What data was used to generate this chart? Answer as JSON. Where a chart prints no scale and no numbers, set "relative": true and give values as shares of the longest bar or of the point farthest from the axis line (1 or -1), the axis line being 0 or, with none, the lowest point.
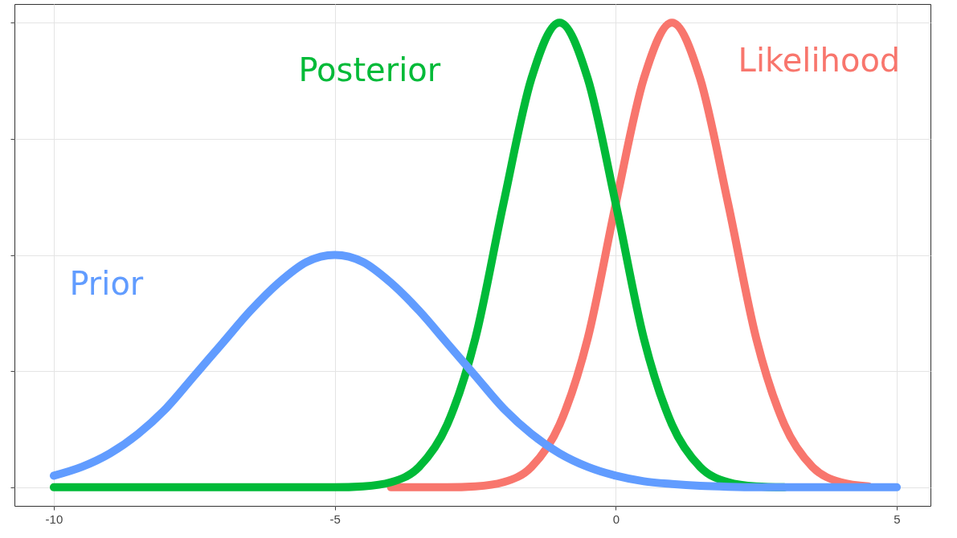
{
  "chart_data": {
    "type": "line",
    "relative": true,
    "x": [
      -10,
      -9.5,
      -9,
      -8.5,
      -8,
      -7.5,
      -7,
      -6.5,
      -6,
      -5.5,
      -5,
      -4.5,
      -4,
      -3.5,
      -3,
      -2.5,
      -2,
      -1.5,
      -1,
      -0.5,
      0,
      0.5,
      1,
      1.5,
      2,
      2.5,
      3,
      3.5,
      4,
      4.5,
      5
    ],
    "series": [
      {
        "name": "Prior",
        "color": "#619cff",
        "values": [
          0.025,
          0.044,
          0.073,
          0.115,
          0.17,
          0.24,
          0.31,
          0.38,
          0.44,
          0.485,
          0.5,
          0.485,
          0.44,
          0.38,
          0.31,
          0.24,
          0.17,
          0.115,
          0.073,
          0.044,
          0.025,
          0.013,
          0.007,
          0.003,
          0.001,
          0,
          0,
          0,
          0,
          0,
          0
        ]
      },
      {
        "name": "Posterior",
        "color": "#00ba38",
        "values": [
          0,
          0,
          0,
          0,
          0,
          0,
          0,
          0,
          0,
          0,
          0,
          0.002,
          0.011,
          0.044,
          0.135,
          0.32,
          0.61,
          0.88,
          1,
          0.88,
          0.61,
          0.32,
          0.135,
          0.044,
          0.011,
          0.002,
          0,
          null,
          null,
          null,
          null
        ]
      },
      {
        "name": "Likelihood",
        "color": "#f8766d",
        "values": [
          null,
          null,
          null,
          null,
          null,
          null,
          null,
          null,
          null,
          null,
          null,
          null,
          0,
          0,
          0,
          0.002,
          0.011,
          0.044,
          0.135,
          0.32,
          0.61,
          0.88,
          1,
          0.88,
          0.61,
          0.32,
          0.135,
          0.044,
          0.011,
          0.002,
          null
        ]
      }
    ],
    "xlim": [
      -10.7,
      5.6
    ],
    "xticks": [
      -10,
      -5,
      0,
      5
    ],
    "grid": true,
    "line_style": "solid"
  }
}
